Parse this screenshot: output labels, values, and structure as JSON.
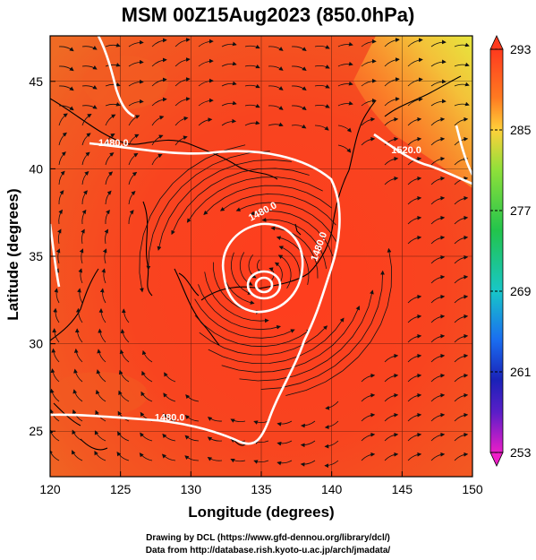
{
  "title": "MSM 00Z15Aug2023 (850.0hPa)",
  "x_axis": {
    "label": "Longitude (degrees)",
    "ticks": [
      "120",
      "125",
      "130",
      "135",
      "140",
      "145",
      "150"
    ]
  },
  "y_axis": {
    "label": "Latitude  (degrees)",
    "ticks": [
      "45",
      "40",
      "35",
      "30",
      "25"
    ]
  },
  "colorbar": {
    "ticks": [
      "293",
      "285",
      "277",
      "269",
      "261",
      "253"
    ]
  },
  "contour_labels": [
    "1480.0",
    "1520.0",
    "1480.0",
    "1480.0",
    "1480.0"
  ],
  "credits": {
    "line1": "Drawing by DCL (https://www.gfd-dennou.org/library/dcl/)",
    "line2": "Data from http://database.rish.kyoto-u.ac.jp/arch/jmadata/"
  },
  "chart_data": {
    "type": "heatmap",
    "title": "MSM 00Z15Aug2023 (850.0hPa)",
    "xlabel": "Longitude (degrees)",
    "ylabel": "Latitude  (degrees)",
    "xlim": [
      120,
      150
    ],
    "ylim": [
      22.4,
      47.6
    ],
    "colorbar_range": [
      253,
      293
    ],
    "colorbar_ticks": [
      293,
      285,
      277,
      269,
      261,
      253
    ],
    "typhoon_center": {
      "lon": 135.3,
      "lat": 34.2
    },
    "contour_labels": [
      {
        "text": "1480.0",
        "lon": 124.5,
        "lat": 41.3
      },
      {
        "text": "1520.0",
        "lon": 145.3,
        "lat": 40.9
      },
      {
        "text": "1480.0",
        "lon": 135.2,
        "lat": 37.4
      },
      {
        "text": "1480.0",
        "lon": 139.3,
        "lat": 35.5
      },
      {
        "text": "1480.0",
        "lon": 128.5,
        "lat": 25.6
      }
    ]
  }
}
